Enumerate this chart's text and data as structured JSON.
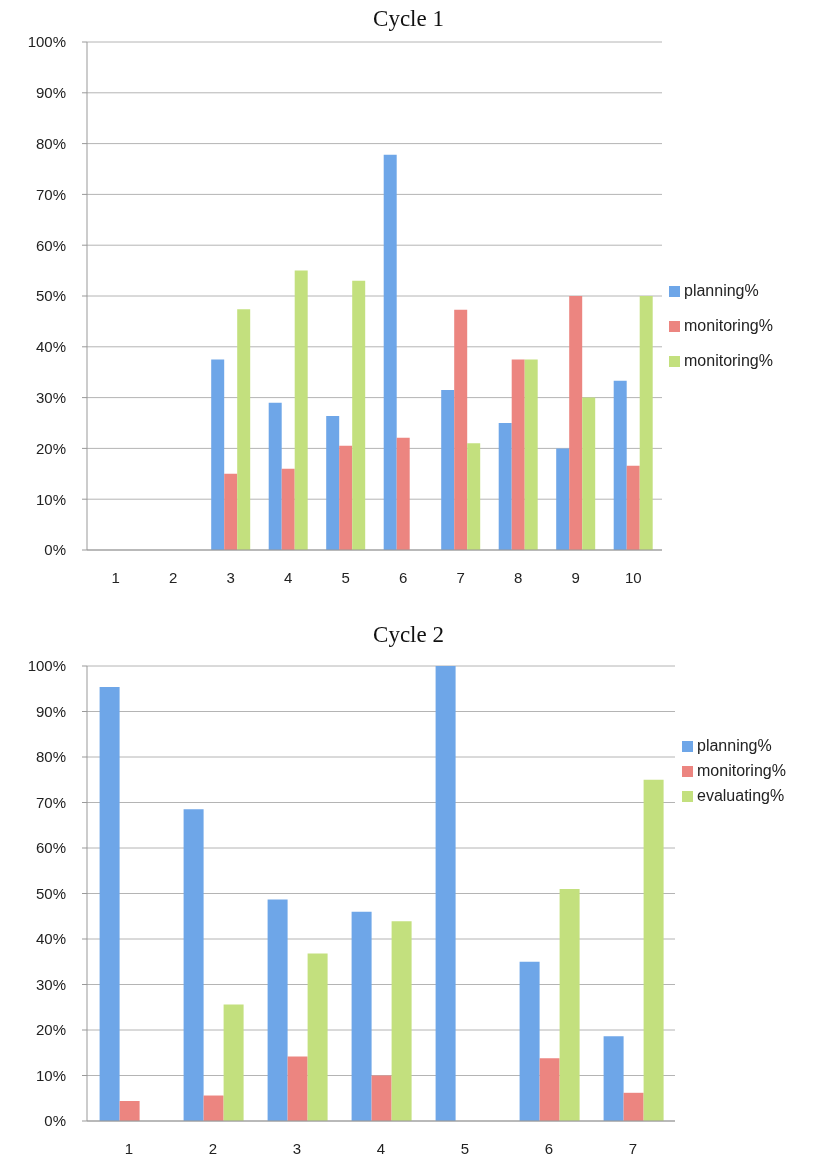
{
  "chart_data": [
    {
      "type": "bar",
      "title": "Cycle 1",
      "categories": [
        "1",
        "2",
        "3",
        "4",
        "5",
        "6",
        "7",
        "8",
        "9",
        "10"
      ],
      "series": [
        {
          "name": "planning%",
          "color": "#6ea6e8",
          "values": [
            null,
            null,
            37.5,
            29,
            26.4,
            77.8,
            31.5,
            25,
            20,
            33.3
          ]
        },
        {
          "name": "monitoring%",
          "color": "#ec8580",
          "values": [
            null,
            null,
            15,
            16,
            20.5,
            22.1,
            47.3,
            37.5,
            50,
            16.6
          ]
        },
        {
          "name": "monitoring%",
          "color": "#c3e07e",
          "values": [
            null,
            null,
            47.4,
            55,
            53,
            null,
            21,
            37.5,
            30,
            50
          ]
        }
      ],
      "ylim": [
        0,
        100
      ],
      "yticks": [
        {
          "value": 0,
          "label": "0%"
        },
        {
          "value": 10,
          "label": "10%"
        },
        {
          "value": 20,
          "label": "20%"
        },
        {
          "value": 30,
          "label": "30%"
        },
        {
          "value": 40,
          "label": "40%"
        },
        {
          "value": 50,
          "label": "50%"
        },
        {
          "value": 60,
          "label": "60%"
        },
        {
          "value": 70,
          "label": "70%"
        },
        {
          "value": 80,
          "label": "80%"
        },
        {
          "value": 90,
          "label": "90%"
        },
        {
          "value": 100,
          "label": "100%"
        }
      ],
      "grid": "y",
      "legend": "right"
    },
    {
      "type": "bar",
      "title": "Cycle 2",
      "categories": [
        "1",
        "2",
        "3",
        "4",
        "5",
        "6",
        "7"
      ],
      "series": [
        {
          "name": "planning%",
          "color": "#6ea6e8",
          "values": [
            95.4,
            68.5,
            48.7,
            46,
            100,
            35,
            18.6
          ]
        },
        {
          "name": "monitoring%",
          "color": "#ec8580",
          "values": [
            4.4,
            5.6,
            14.2,
            10,
            null,
            13.8,
            6.2
          ]
        },
        {
          "name": "evaluating%",
          "color": "#c3e07e",
          "values": [
            null,
            25.6,
            36.8,
            43.9,
            null,
            51,
            75
          ]
        }
      ],
      "ylim": [
        0,
        100
      ],
      "yticks": [
        {
          "value": 0,
          "label": "0%"
        },
        {
          "value": 10,
          "label": "10%"
        },
        {
          "value": 20,
          "label": "20%"
        },
        {
          "value": 30,
          "label": "30%"
        },
        {
          "value": 40,
          "label": "40%"
        },
        {
          "value": 50,
          "label": "50%"
        },
        {
          "value": 60,
          "label": "60%"
        },
        {
          "value": 70,
          "label": "70%"
        },
        {
          "value": 80,
          "label": "80%"
        },
        {
          "value": 90,
          "label": "90%"
        },
        {
          "value": 100,
          "label": "100%"
        }
      ],
      "grid": "y",
      "legend": "right"
    }
  ]
}
